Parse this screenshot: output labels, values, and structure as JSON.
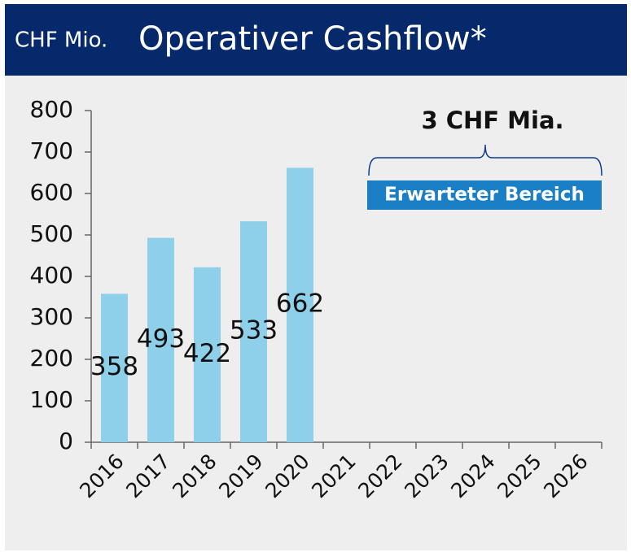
{
  "chart_data": {
    "type": "bar",
    "unit": "CHF Mio.",
    "title": "Operativer Cashflow*",
    "categories": [
      "2016",
      "2017",
      "2018",
      "2019",
      "2020",
      "2021",
      "2022",
      "2023",
      "2024",
      "2025",
      "2026"
    ],
    "values": [
      358,
      493,
      422,
      533,
      662,
      null,
      null,
      null,
      null,
      null,
      null
    ],
    "color": "#8ed0ea",
    "ylim": [
      0,
      800
    ],
    "yticks": [
      0,
      100,
      200,
      300,
      400,
      500,
      600,
      700,
      800
    ],
    "grid": false,
    "annotation": "3 CHF Mia.",
    "range_label": "Erwarteter Bereich"
  }
}
